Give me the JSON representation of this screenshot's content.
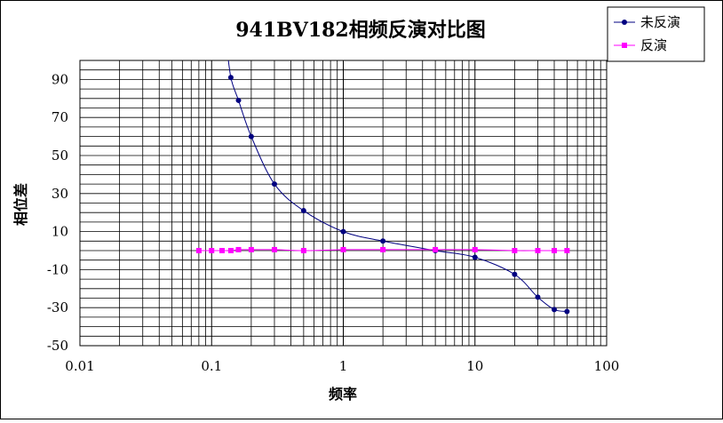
{
  "chart_data": {
    "type": "line",
    "title": "941BV182相频反演对比图",
    "xlabel": "频率",
    "ylabel": "相位差",
    "x_scale": "log",
    "xlim": [
      0.01,
      100
    ],
    "ylim": [
      -50,
      100
    ],
    "x_ticks": [
      "0.01",
      "0.1",
      "1",
      "10",
      "100"
    ],
    "y_ticks": [
      "90",
      "70",
      "50",
      "30",
      "10",
      "-10",
      "-30",
      "-50"
    ],
    "y_tick_values": [
      90,
      70,
      50,
      30,
      10,
      -10,
      -30,
      -50
    ],
    "grid": true,
    "legend_position": "top-right",
    "series": [
      {
        "name": "未反演",
        "color": "#000080",
        "marker": "circle",
        "x": [
          0.14,
          0.16,
          0.2,
          0.3,
          0.5,
          1,
          2,
          5,
          10,
          20,
          30,
          40,
          50
        ],
        "y": [
          91,
          79,
          60,
          35,
          21,
          10,
          5,
          0,
          -3.5,
          -12.5,
          -24.5,
          -31,
          -32
        ]
      },
      {
        "name": "反演",
        "color": "#ff00ff",
        "marker": "square",
        "x": [
          0.08,
          0.1,
          0.12,
          0.14,
          0.16,
          0.2,
          0.3,
          0.5,
          1,
          2,
          5,
          10,
          20,
          30,
          40,
          50
        ],
        "y": [
          0,
          0,
          0,
          0,
          0.5,
          0.5,
          0.5,
          0,
          0.5,
          0.5,
          0.5,
          0.5,
          0,
          0,
          0,
          0
        ]
      }
    ]
  }
}
